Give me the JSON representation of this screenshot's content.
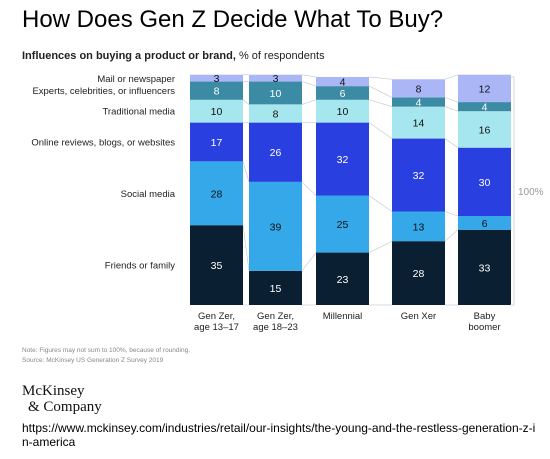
{
  "title": "How Does Gen Z Decide What To Buy?",
  "subtitle_bold": "Influences on buying a product or brand,",
  "subtitle_rest": " % of respondents",
  "notes": [
    "Note: Figures may not sum to 100%, because of rounding.",
    "Source: McKinsey US Generation Z Survey 2019"
  ],
  "logo": {
    "line1": "McKinsey",
    "line2": "& Company"
  },
  "url": "https://www.mckinsey.com/industries/retail/our-insights/the-young-and-the-restless-generation-z-in-america",
  "colors": {
    "friends": "#0b1f33",
    "social": "#34a8e8",
    "online": "#2a3fe0",
    "traditional": "#a6e6ee",
    "experts": "#3c8ba4",
    "mail": "#aab6f6"
  },
  "chart_data": {
    "type": "bar",
    "stacked": true,
    "categories": [
      "Gen Zer,\nage 13–17",
      "Gen Zer,\nage 18–23",
      "Millennial",
      "Gen Xer",
      "Baby\nboomer"
    ],
    "series": [
      {
        "name": "Friends or family",
        "values": [
          35,
          15,
          23,
          28,
          33
        ]
      },
      {
        "name": "Social media",
        "values": [
          28,
          39,
          25,
          13,
          6
        ]
      },
      {
        "name": "Online reviews, blogs, or websites",
        "values": [
          17,
          26,
          32,
          32,
          30
        ]
      },
      {
        "name": "Traditional media",
        "values": [
          10,
          8,
          10,
          14,
          16
        ]
      },
      {
        "name": "Experts, celebrities, or influencers",
        "values": [
          8,
          10,
          6,
          4,
          4
        ]
      },
      {
        "name": "Mail or newspaper",
        "values": [
          3,
          3,
          4,
          8,
          12
        ]
      }
    ],
    "total_label": "100%",
    "ylim": [
      0,
      100
    ]
  }
}
